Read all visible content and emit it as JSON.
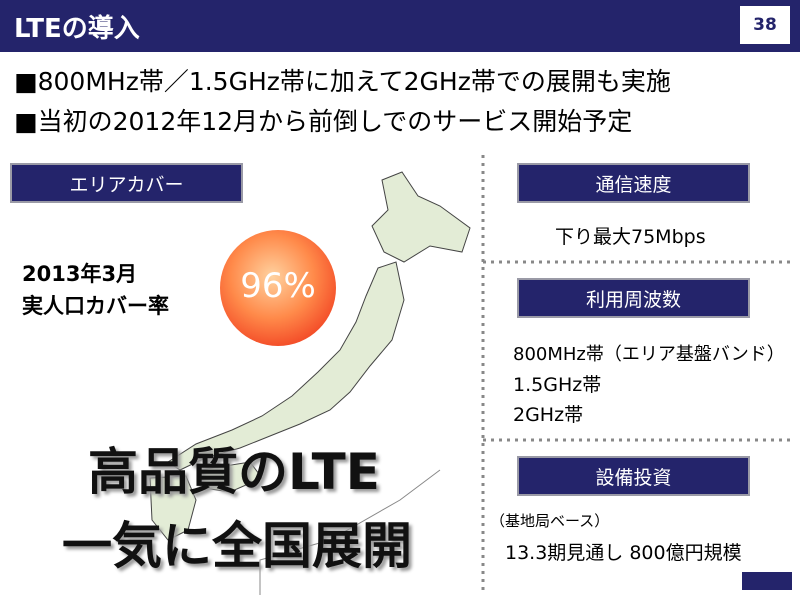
{
  "header": {
    "title": "LTEの導入",
    "page_number": "38"
  },
  "bullets": [
    "■800MHz帯／1.5GHz帯に加えて2GHz帯での展開も実施",
    "■当初の2012年12月から前倒しでのサービス開始予定"
  ],
  "area_coverage": {
    "label": "エリアカバー",
    "date": "2013年3月",
    "metric": "実人口カバー率",
    "value": "96%"
  },
  "slogan": [
    "高品質のLTE",
    "一気に全国展開"
  ],
  "sections": [
    {
      "label": "通信速度",
      "lines": [
        "下り最大75Mbps"
      ]
    },
    {
      "label": "利用周波数",
      "lines": [
        "800MHz帯（エリア基盤バンド）",
        "1.5GHz帯",
        "2GHz帯"
      ]
    },
    {
      "label": "設備投資",
      "lines": [
        "（基地局ベース）",
        "13.3期見通し 800億円規模"
      ]
    }
  ]
}
